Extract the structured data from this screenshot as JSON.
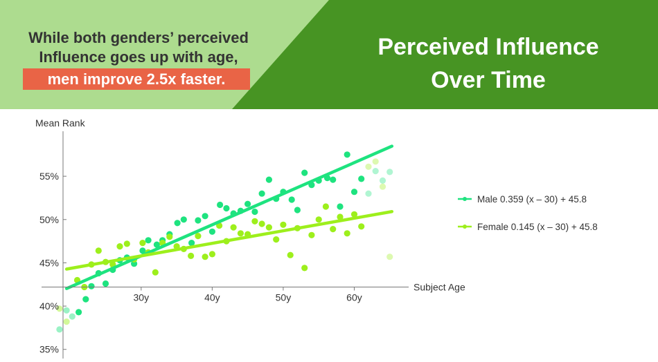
{
  "header": {
    "headline_line1": "While both genders’ perceived",
    "headline_line2": "Influence goes up with age,",
    "headline_highlight": "men improve 2.5x faster.",
    "title_line1": "Perceived Influence",
    "title_line2": "Over Time",
    "colors": {
      "left_panel": "#addc8f",
      "right_panel": "#479423",
      "highlight": "#e96446"
    }
  },
  "chart_data": {
    "type": "scatter",
    "ylabel": "Mean Rank",
    "xlabel": "Subject Age",
    "x_range": [
      19,
      66
    ],
    "y_range": [
      34.5,
      59
    ],
    "x_ticks": [
      30,
      40,
      50,
      60
    ],
    "x_tick_labels": [
      "30y",
      "40y",
      "50y",
      "60y"
    ],
    "y_ticks": [
      35,
      40,
      45,
      50,
      55
    ],
    "y_tick_labels": [
      "35%",
      "40%",
      "45%",
      "50%",
      "55%"
    ],
    "grid": false,
    "legend_position": "right",
    "series": [
      {
        "name": "Male",
        "legend_label": "Male 0.359 (x – 30) + 45.8",
        "color": "#1ee37f",
        "fit": {
          "slope": 0.359,
          "intercept_at_30": 45.8
        },
        "points": [
          [
            18.5,
            37.3
          ],
          [
            19.5,
            39.5
          ],
          [
            20.3,
            38.8
          ],
          [
            21.2,
            39.3
          ],
          [
            22.2,
            40.8
          ],
          [
            23.0,
            42.3
          ],
          [
            24.0,
            43.8
          ],
          [
            25.0,
            42.6
          ],
          [
            26.0,
            44.2
          ],
          [
            27.0,
            45.3
          ],
          [
            28.0,
            45.6
          ],
          [
            29.0,
            44.9
          ],
          [
            30.2,
            46.4
          ],
          [
            31.0,
            47.6
          ],
          [
            32.2,
            47.1
          ],
          [
            33.0,
            47.6
          ],
          [
            34.0,
            48.3
          ],
          [
            35.1,
            49.6
          ],
          [
            36.0,
            50.0
          ],
          [
            37.1,
            47.3
          ],
          [
            38.0,
            49.9
          ],
          [
            39.0,
            50.4
          ],
          [
            40.0,
            48.6
          ],
          [
            41.1,
            51.7
          ],
          [
            42.0,
            51.3
          ],
          [
            43.0,
            50.7
          ],
          [
            44.0,
            51.0
          ],
          [
            45.0,
            51.8
          ],
          [
            46.0,
            50.9
          ],
          [
            47.0,
            53.0
          ],
          [
            48.0,
            54.6
          ],
          [
            49.0,
            52.4
          ],
          [
            50.0,
            53.2
          ],
          [
            51.2,
            52.3
          ],
          [
            52.0,
            51.1
          ],
          [
            53.0,
            55.4
          ],
          [
            54.0,
            54.0
          ],
          [
            55.0,
            54.5
          ],
          [
            56.2,
            54.8
          ],
          [
            57.0,
            54.6
          ],
          [
            58.0,
            51.5
          ],
          [
            59.0,
            57.5
          ],
          [
            60.0,
            53.2
          ],
          [
            61.0,
            54.7
          ],
          [
            62.0,
            53.0
          ],
          [
            63.0,
            55.6
          ],
          [
            64.0,
            54.5
          ],
          [
            65.0,
            55.5
          ]
        ]
      },
      {
        "name": "Female",
        "legend_label": "Female 0.145 (x – 30) + 45.8",
        "color": "#9def1c",
        "fit": {
          "slope": 0.145,
          "intercept_at_30": 45.8
        },
        "points": [
          [
            18.5,
            39.7
          ],
          [
            19.5,
            38.2
          ],
          [
            21.0,
            43.0
          ],
          [
            22.0,
            42.2
          ],
          [
            23.0,
            44.8
          ],
          [
            24.0,
            46.4
          ],
          [
            25.0,
            45.1
          ],
          [
            26.0,
            44.8
          ],
          [
            27.0,
            46.9
          ],
          [
            28.0,
            47.2
          ],
          [
            29.0,
            45.4
          ],
          [
            30.2,
            47.3
          ],
          [
            31.0,
            46.2
          ],
          [
            32.0,
            43.9
          ],
          [
            33.0,
            47.3
          ],
          [
            34.0,
            48.0
          ],
          [
            35.0,
            46.9
          ],
          [
            36.0,
            46.6
          ],
          [
            37.0,
            45.8
          ],
          [
            38.0,
            48.1
          ],
          [
            39.0,
            45.7
          ],
          [
            40.0,
            46.0
          ],
          [
            41.0,
            49.3
          ],
          [
            42.0,
            47.5
          ],
          [
            43.0,
            49.1
          ],
          [
            44.0,
            48.4
          ],
          [
            45.0,
            48.3
          ],
          [
            46.0,
            49.8
          ],
          [
            47.0,
            49.5
          ],
          [
            48.0,
            49.1
          ],
          [
            49.0,
            47.7
          ],
          [
            50.0,
            49.4
          ],
          [
            51.0,
            45.9
          ],
          [
            52.0,
            49.0
          ],
          [
            53.0,
            44.4
          ],
          [
            54.0,
            48.2
          ],
          [
            55.0,
            50.0
          ],
          [
            56.0,
            51.5
          ],
          [
            57.0,
            48.9
          ],
          [
            58.0,
            50.3
          ],
          [
            59.0,
            48.4
          ],
          [
            60.0,
            50.6
          ],
          [
            61.0,
            49.2
          ],
          [
            62.0,
            56.1
          ],
          [
            63.0,
            56.7
          ],
          [
            64.0,
            53.8
          ],
          [
            65.0,
            45.7
          ]
        ]
      }
    ]
  }
}
